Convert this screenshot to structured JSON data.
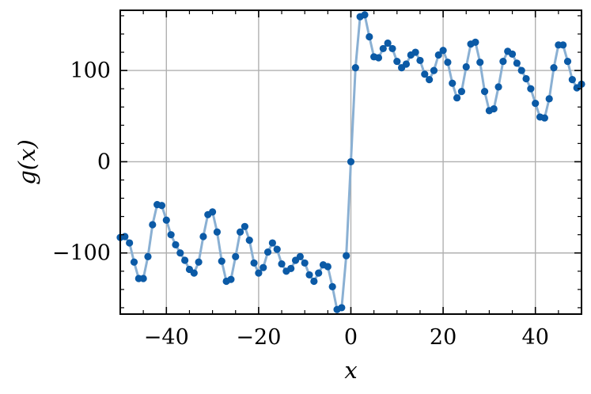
{
  "chart_data": {
    "type": "line",
    "xlabel": "x",
    "ylabel": "g(x)",
    "xlim": [
      -50,
      50
    ],
    "ylim": [
      -167,
      166
    ],
    "xticks": [
      -40,
      -20,
      0,
      20,
      40
    ],
    "xtick_labels": [
      "−40",
      "−20",
      "0",
      "20",
      "40"
    ],
    "yticks": [
      -100,
      0,
      100
    ],
    "ytick_labels": [
      "−100",
      "0",
      "100"
    ],
    "grid": true,
    "legend": "none",
    "colors": {
      "line": "#8ab0d3",
      "marker": "#0b5aa6",
      "grid": "#b0b0b0"
    },
    "series": [
      {
        "x": [
          -50,
          -49,
          -48,
          -47,
          -46,
          -45,
          -44,
          -43,
          -42,
          -41,
          -40,
          -39,
          -38,
          -37,
          -36,
          -35,
          -34,
          -33,
          -32,
          -31,
          -30,
          -29,
          -28,
          -27,
          -26,
          -25,
          -24,
          -23,
          -22,
          -21,
          -20,
          -19,
          -18,
          -17,
          -16,
          -15,
          -14,
          -13,
          -12,
          -11,
          -10,
          -9,
          -8,
          -7,
          -6,
          -5,
          -4,
          -3,
          -2,
          -1,
          0,
          1,
          2,
          3,
          4,
          5,
          6,
          7,
          8,
          9,
          10,
          11,
          12,
          13,
          14,
          15,
          16,
          17,
          18,
          19,
          20,
          21,
          22,
          23,
          24,
          25,
          26,
          27,
          28,
          29,
          30,
          31,
          32,
          33,
          34,
          35,
          36,
          37,
          38,
          39,
          40,
          41,
          42,
          43,
          44,
          45,
          46,
          47,
          48,
          49,
          50
        ],
        "y": [
          -83,
          -82,
          -89,
          -110,
          -128,
          -128,
          -104,
          -69,
          -47,
          -48,
          -64,
          -80,
          -91,
          -100,
          -108,
          -118,
          -122,
          -110,
          -82,
          -58,
          -55,
          -77,
          -109,
          -131,
          -129,
          -104,
          -77,
          -71,
          -86,
          -111,
          -122,
          -116,
          -99,
          -89,
          -96,
          -112,
          -120,
          -117,
          -108,
          -104,
          -111,
          -124,
          -131,
          -122,
          -113,
          -115,
          -137,
          -162,
          -160,
          -103,
          0,
          103,
          159,
          161,
          137,
          115,
          114,
          124,
          130,
          124,
          110,
          103,
          107,
          117,
          120,
          111,
          96,
          90,
          100,
          117,
          122,
          109,
          86,
          70,
          77,
          104,
          129,
          131,
          109,
          77,
          56,
          58,
          82,
          110,
          121,
          118,
          108,
          100,
          91,
          80,
          64,
          49,
          48,
          69,
          103,
          128,
          128,
          110,
          90,
          81,
          85
        ]
      }
    ]
  }
}
